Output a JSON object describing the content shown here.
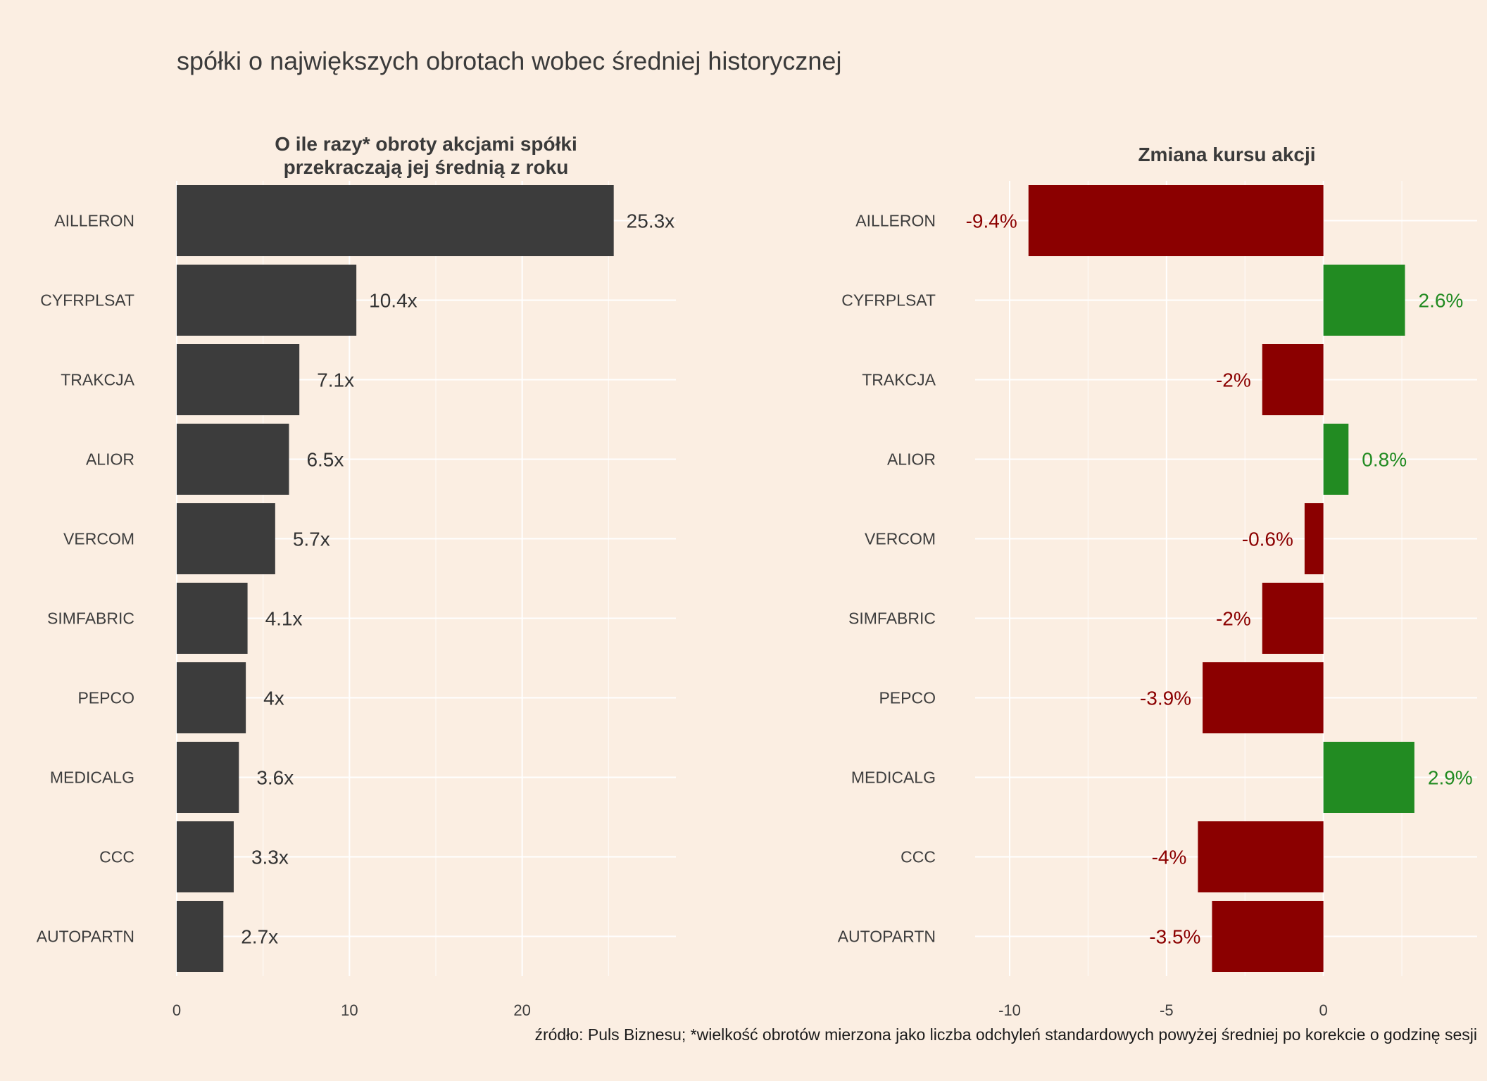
{
  "title": "spółki o największych obrotach wobec średniej historycznej",
  "caption": "źródło: Puls Biznesu; *wielkość obrotów mierzona jako liczba odchyleń standardowych powyżej średniej po korekcie o godzinę sesji",
  "colors": {
    "background": "#FBEEE2",
    "grid": "#FFFFFF",
    "bar_left": "#3C3C3C",
    "positive": "#228B22",
    "negative": "#8B0000",
    "text": "#3A3A3A"
  },
  "chart_data": [
    {
      "type": "bar",
      "orientation": "horizontal",
      "title_lines": [
        "O ile razy* obroty akcjami spółki",
        "przekraczają jej średnią z roku"
      ],
      "categories": [
        "AILLERON",
        "CYFRPLSAT",
        "TRAKCJA",
        "ALIOR",
        "VERCOM",
        "SIMFABRIC",
        "PEPCO",
        "MEDICALG",
        "CCC",
        "AUTOPARTN"
      ],
      "values": [
        25.3,
        10.4,
        7.1,
        6.5,
        5.7,
        4.1,
        4,
        3.6,
        3.3,
        2.7
      ],
      "labels": [
        "25.3x",
        "10.4x",
        "7.1x",
        "6.5x",
        "5.7x",
        "4.1x",
        "4x",
        "3.6x",
        "3.3x",
        "2.7x"
      ],
      "xticks": [
        0,
        10,
        20
      ],
      "xtick_labels": [
        "0",
        "10",
        "20"
      ],
      "xlim": [
        0,
        28.9
      ],
      "grid": true
    },
    {
      "type": "bar",
      "orientation": "horizontal",
      "title_lines": [
        "Zmiana kursu akcji"
      ],
      "categories": [
        "AILLERON",
        "CYFRPLSAT",
        "TRAKCJA",
        "ALIOR",
        "VERCOM",
        "SIMFABRIC",
        "PEPCO",
        "MEDICALG",
        "CCC",
        "AUTOPARTN"
      ],
      "values": [
        -9.4,
        2.6,
        -1.95,
        0.8,
        -0.6,
        -1.95,
        -3.85,
        2.9,
        -4.0,
        -3.55
      ],
      "labels": [
        "-9.4%",
        "2.6%",
        "-2%",
        "0.8%",
        "-0.6%",
        "-2%",
        "-3.9%",
        "2.9%",
        "-4%",
        "-3.5%"
      ],
      "xticks": [
        -10,
        -5,
        0
      ],
      "xtick_labels": [
        "-10",
        "-5",
        "0"
      ],
      "xlim": [
        -11.1,
        4.9
      ],
      "grid": true
    }
  ]
}
